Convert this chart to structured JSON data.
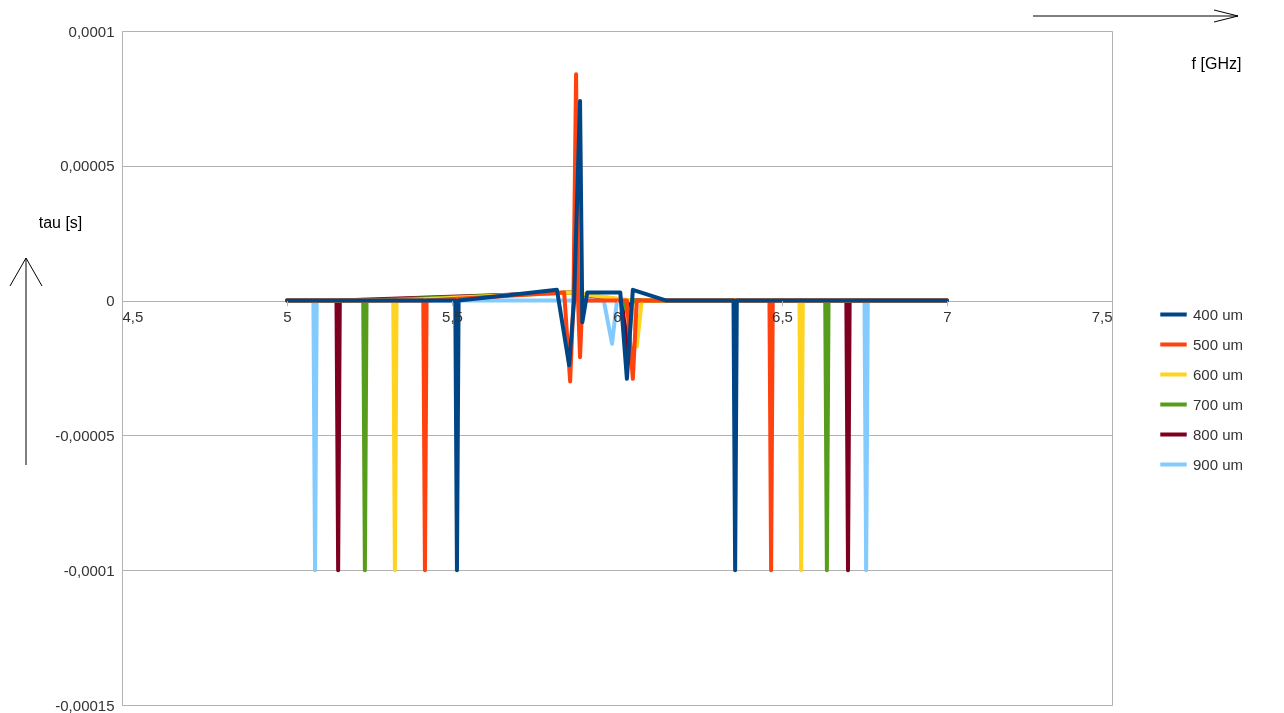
{
  "chart_data": {
    "type": "line",
    "xlabel": "f [GHz]",
    "ylabel": "tau [s]",
    "xlim": [
      4.5,
      7.5
    ],
    "ylim": [
      -0.00015,
      0.0001
    ],
    "xticks": [
      {
        "value": 4.5,
        "label": "4,5"
      },
      5,
      {
        "value": 5.5,
        "label": "5,5"
      },
      6,
      {
        "value": 6.5,
        "label": "6,5"
      },
      7,
      {
        "value": 7.5,
        "label": "7,5"
      }
    ],
    "yticks": [
      {
        "value": -0.00015,
        "label": "-0,00015"
      },
      {
        "value": -0.0001,
        "label": "-0,0001"
      },
      {
        "value": -5e-05,
        "label": "-0,00005"
      },
      0,
      {
        "value": 5e-05,
        "label": "0,00005"
      },
      {
        "value": 0.0001,
        "label": "0,0001"
      }
    ],
    "grid": "y",
    "legend": "right",
    "line_style": "solid",
    "marker": "none",
    "series": [
      {
        "name": "400 um",
        "color": "#004586",
        "x": [
          5,
          5.51,
          5.515,
          5.52,
          5.818,
          5.855,
          5.87,
          5.888,
          5.895,
          5.91,
          6.01,
          6.03,
          6.048,
          6.15,
          6.353,
          6.358,
          6.363,
          7
        ],
        "values": [
          0,
          0,
          -0.0001,
          0,
          4e-06,
          -2.4e-05,
          0,
          7.4e-05,
          -8e-06,
          3e-06,
          3e-06,
          -2.9e-05,
          4e-06,
          0,
          0,
          -0.0001,
          0,
          0
        ]
      },
      {
        "name": "500 um",
        "color": "#ff420e",
        "x": [
          5,
          5.413,
          5.418,
          5.423,
          5.84,
          5.858,
          5.868,
          5.876,
          5.882,
          5.888,
          5.895,
          6.03,
          6.048,
          6.06,
          6.462,
          6.467,
          6.472,
          7
        ],
        "values": [
          0,
          0,
          -0.0001,
          0,
          3e-06,
          -3e-05,
          0,
          8.4e-05,
          0,
          -2.1e-05,
          0,
          0,
          -2.9e-05,
          0,
          0,
          -0.0001,
          0,
          0
        ]
      },
      {
        "name": "600 um",
        "color": "#ffd320",
        "x": [
          5,
          5.322,
          5.327,
          5.332,
          5.86,
          6.045,
          6.06,
          6.075,
          6.553,
          6.558,
          6.563,
          7
        ],
        "values": [
          0,
          0,
          -0.0001,
          0,
          3e-06,
          0,
          -1.7e-05,
          0,
          0,
          -0.0001,
          0,
          0
        ]
      },
      {
        "name": "700 um",
        "color": "#579d1c",
        "x": [
          5,
          5.231,
          5.236,
          5.241,
          5.86,
          6.02,
          6.035,
          6.05,
          6.631,
          6.636,
          6.641,
          7
        ],
        "values": [
          0,
          0,
          -0.0001,
          0,
          3e-06,
          0,
          -6e-06,
          0,
          0,
          -0.0001,
          0,
          0
        ]
      },
      {
        "name": "800 um",
        "color": "#7e0021",
        "x": [
          5,
          5.15,
          5.155,
          5.16,
          5.86,
          6.015,
          6.03,
          6.04,
          6.695,
          6.7,
          6.705,
          7
        ],
        "values": [
          0,
          0,
          -0.0001,
          0,
          3e-06,
          0,
          -1.8e-05,
          0,
          0,
          -0.0001,
          0,
          0
        ]
      },
      {
        "name": "900 um",
        "color": "#83caff",
        "x": [
          5,
          5.08,
          5.085,
          5.09,
          5.96,
          5.985,
          6,
          6.75,
          6.755,
          6.76,
          7
        ],
        "values": [
          0,
          0,
          -0.0001,
          0,
          0,
          -1.6e-05,
          0,
          0,
          -0.0001,
          0,
          0
        ]
      }
    ]
  }
}
